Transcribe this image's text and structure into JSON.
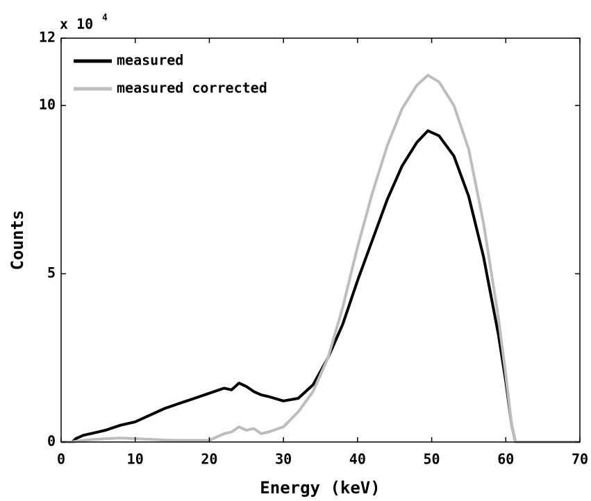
{
  "chart_data": {
    "type": "line",
    "xlabel": "Energy (keV)",
    "ylabel": "Counts",
    "y_scale_label": "x 10",
    "y_scale_exponent": "4",
    "x": [
      0,
      1.5,
      2,
      3,
      4,
      6,
      8,
      10,
      12,
      14,
      16,
      18,
      20,
      22,
      23,
      24,
      25,
      26,
      27,
      28,
      30,
      32,
      34,
      36,
      38,
      40,
      42,
      44,
      46,
      48,
      49.5,
      51,
      53,
      55,
      57,
      59,
      60,
      60.8,
      61.3,
      70
    ],
    "series": [
      {
        "name": "measured",
        "color": "#000000",
        "values": [
          0,
          0,
          0.1,
          0.2,
          0.25,
          0.35,
          0.5,
          0.6,
          0.8,
          1.0,
          1.15,
          1.3,
          1.45,
          1.6,
          1.55,
          1.75,
          1.65,
          1.5,
          1.4,
          1.35,
          1.22,
          1.3,
          1.7,
          2.5,
          3.5,
          4.8,
          6.0,
          7.2,
          8.2,
          8.9,
          9.25,
          9.1,
          8.5,
          7.3,
          5.5,
          3.2,
          1.8,
          0.5,
          0,
          0
        ]
      },
      {
        "name": "measured corrected",
        "color": "#bdbdbd",
        "values": [
          0,
          0,
          0.02,
          0.05,
          0.07,
          0.1,
          0.12,
          0.1,
          0.08,
          0.06,
          0.05,
          0.05,
          0.05,
          0.25,
          0.3,
          0.45,
          0.35,
          0.4,
          0.25,
          0.3,
          0.45,
          0.9,
          1.5,
          2.5,
          4.0,
          5.8,
          7.4,
          8.8,
          9.9,
          10.6,
          10.9,
          10.7,
          10.0,
          8.7,
          6.5,
          3.7,
          2.0,
          0.5,
          0,
          0
        ]
      }
    ],
    "xlim": [
      0,
      70
    ],
    "xticks": [
      0,
      10,
      20,
      30,
      40,
      50,
      60,
      70
    ],
    "ylim": [
      0,
      12
    ],
    "yticks": [
      0,
      5,
      10,
      12
    ],
    "legend": "upper left"
  }
}
